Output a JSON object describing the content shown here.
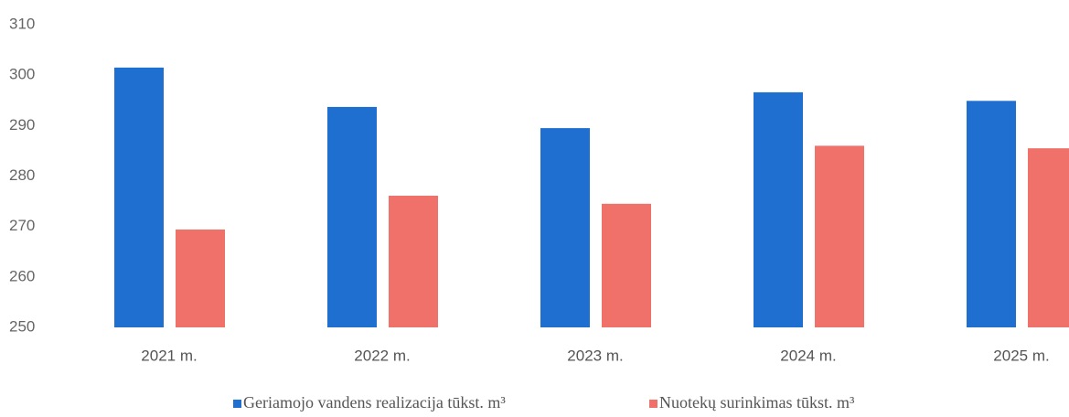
{
  "chart_data": {
    "type": "bar",
    "categories": [
      "2021 m.",
      "2022 m.",
      "2023 m.",
      "2024 m.",
      "2025 m."
    ],
    "series": [
      {
        "name": "Geriamojo vandens realizacija tūkst. m³",
        "color": "#1f6fd1",
        "values": [
          301.5,
          293.7,
          289.5,
          296.6,
          294.9
        ]
      },
      {
        "name": "Nuotekų surinkimas tūkst. m³",
        "color": "#f0706a",
        "values": [
          269.4,
          276.1,
          274.5,
          286,
          285.5
        ]
      }
    ],
    "ylim": [
      250,
      310
    ],
    "yticks": [
      250,
      260,
      270,
      280,
      290,
      300,
      310
    ],
    "grid": false,
    "legend": "bottom"
  }
}
